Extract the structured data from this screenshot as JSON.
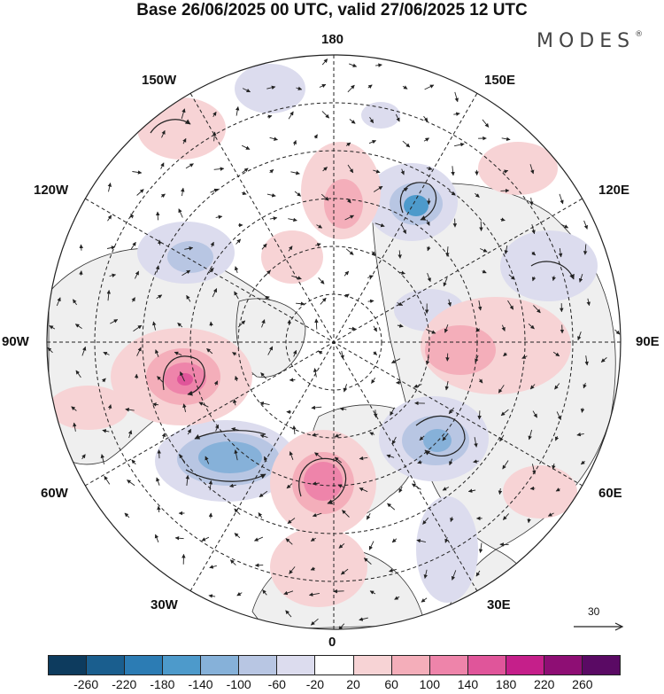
{
  "title": "Base 26/06/2025 00 UTC, valid 27/06/2025 12 UTC",
  "logo": "MODES",
  "logo_mark": "®",
  "longitude_labels": [
    "180",
    "150E",
    "120E",
    "90E",
    "60E",
    "30E",
    "0",
    "30W",
    "60W",
    "90W",
    "120W",
    "150W"
  ],
  "reference_vector": "30",
  "colorbar": {
    "colors": [
      "#0d3b5e",
      "#1a5e8e",
      "#2c7cb4",
      "#4d9acb",
      "#86b1d9",
      "#b8c6e3",
      "#dcdcee",
      "#ffffff",
      "#f7d3d5",
      "#f4aeba",
      "#ee84aa",
      "#e0559a",
      "#c51f8a",
      "#8e0e74",
      "#5a0a64"
    ],
    "ticks": [
      "-260",
      "-220",
      "-180",
      "-140",
      "-100",
      "-60",
      "-20",
      "20",
      "60",
      "100",
      "140",
      "180",
      "220",
      "260"
    ]
  },
  "anomaly_colors": {
    "neg_light": "#dcdcee",
    "neg_mid": "#b8c6e3",
    "neg_strong": "#86b1d9",
    "neg_core": "#4d9acb",
    "pos_light": "#f7d3d5",
    "pos_mid": "#f4aeba",
    "pos_strong": "#ee84aa",
    "pos_core": "#e0559a",
    "land": "#efefef"
  }
}
